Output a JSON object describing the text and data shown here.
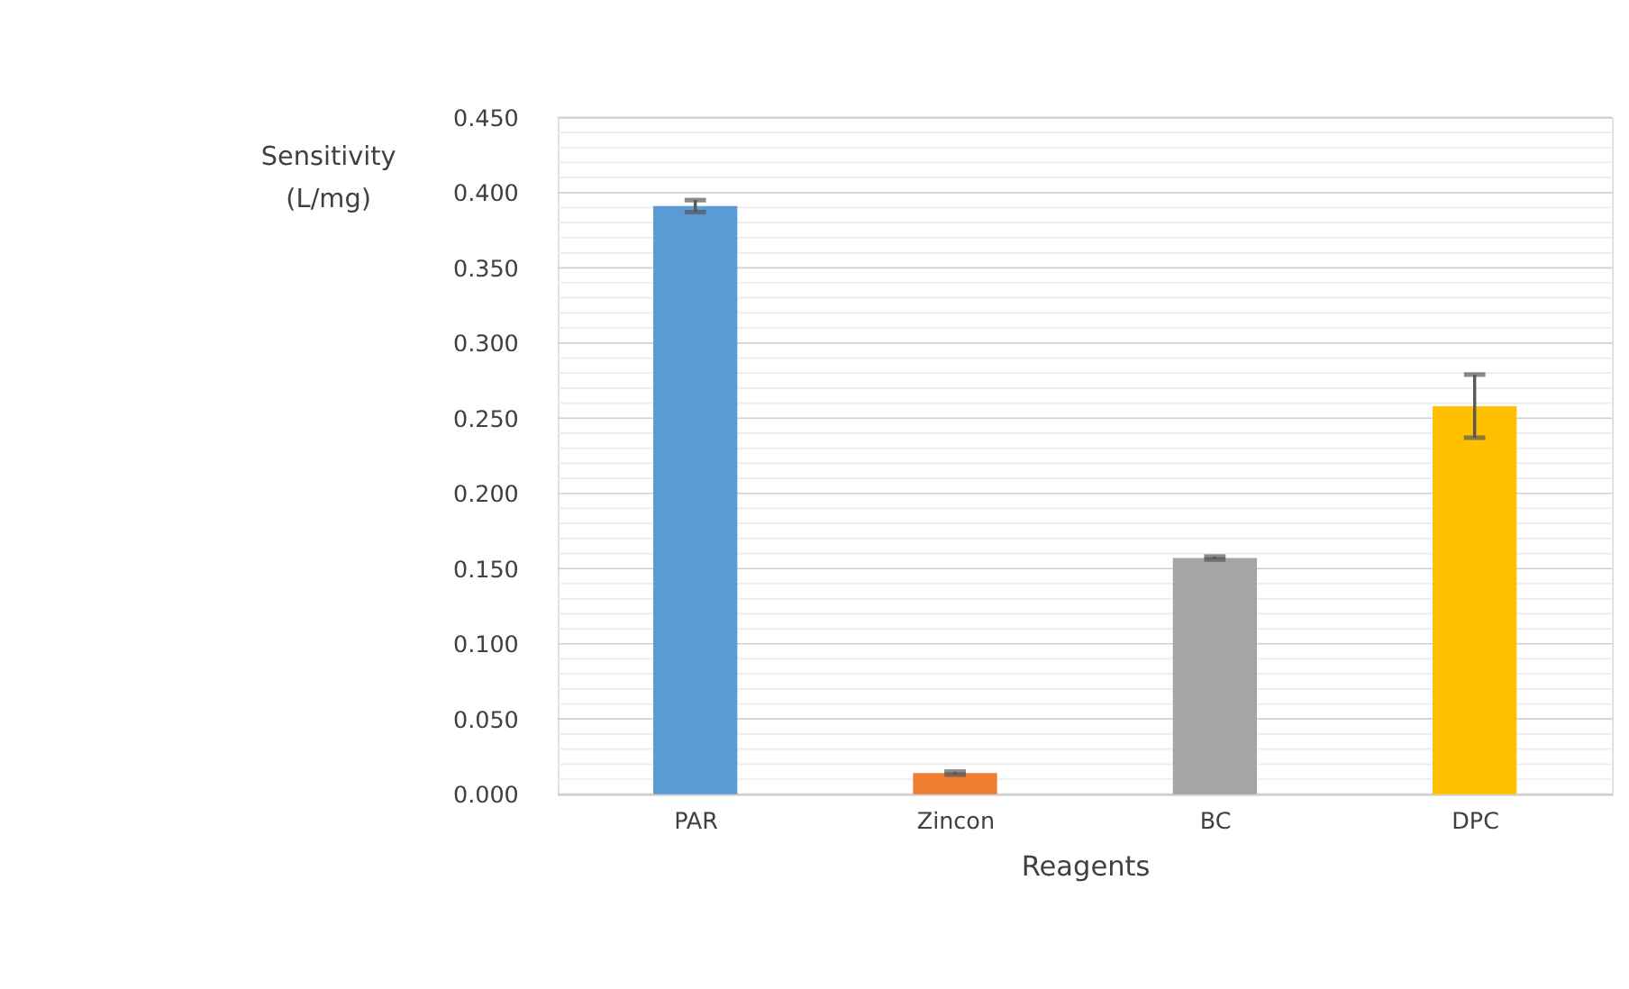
{
  "chart_data": {
    "type": "bar",
    "xlabel": "Reagents",
    "ylabel": "Sensitivity (L/mg)",
    "categories": [
      "PAR",
      "Zincon",
      "BC",
      "DPC"
    ],
    "values": [
      0.391,
      0.014,
      0.157,
      0.258
    ],
    "colors": [
      "#5b9bd5",
      "#ed7d31",
      "#a5a5a5",
      "#ffc000"
    ],
    "errors": [
      0.004,
      0.001,
      0.001,
      0.021
    ],
    "ylim": [
      0,
      0.45
    ],
    "yticks": [
      {
        "value": 0,
        "label": "0.000"
      },
      {
        "value": 0.01,
        "label": null
      },
      {
        "value": 0.02,
        "label": null
      },
      {
        "value": 0.03,
        "label": null
      },
      {
        "value": 0.04,
        "label": null
      },
      {
        "value": 0.05,
        "label": "0.050"
      },
      {
        "value": 0.06,
        "label": null
      },
      {
        "value": 0.07,
        "label": null
      },
      {
        "value": 0.08,
        "label": null
      },
      {
        "value": 0.09,
        "label": null
      },
      {
        "value": 0.1,
        "label": "0.100"
      },
      {
        "value": 0.11,
        "label": null
      },
      {
        "value": 0.12,
        "label": null
      },
      {
        "value": 0.13,
        "label": null
      },
      {
        "value": 0.14,
        "label": null
      },
      {
        "value": 0.15,
        "label": "0.150"
      },
      {
        "value": 0.16,
        "label": null
      },
      {
        "value": 0.17,
        "label": null
      },
      {
        "value": 0.18,
        "label": null
      },
      {
        "value": 0.19,
        "label": null
      },
      {
        "value": 0.2,
        "label": "0.200"
      },
      {
        "value": 0.21,
        "label": null
      },
      {
        "value": 0.22,
        "label": null
      },
      {
        "value": 0.23,
        "label": null
      },
      {
        "value": 0.24,
        "label": null
      },
      {
        "value": 0.25,
        "label": "0.250"
      },
      {
        "value": 0.26,
        "label": null
      },
      {
        "value": 0.27,
        "label": null
      },
      {
        "value": 0.28,
        "label": null
      },
      {
        "value": 0.29,
        "label": null
      },
      {
        "value": 0.3,
        "label": "0.300"
      },
      {
        "value": 0.31,
        "label": null
      },
      {
        "value": 0.32,
        "label": null
      },
      {
        "value": 0.33,
        "label": null
      },
      {
        "value": 0.34,
        "label": null
      },
      {
        "value": 0.35,
        "label": "0.350"
      },
      {
        "value": 0.36,
        "label": null
      },
      {
        "value": 0.37,
        "label": null
      },
      {
        "value": 0.38,
        "label": null
      },
      {
        "value": 0.39,
        "label": null
      },
      {
        "value": 0.4,
        "label": "0.400"
      },
      {
        "value": 0.41,
        "label": null
      },
      {
        "value": 0.42,
        "label": null
      },
      {
        "value": 0.43,
        "label": null
      },
      {
        "value": 0.44,
        "label": null
      },
      {
        "value": 0.45,
        "label": "0.450"
      }
    ],
    "grid": "y"
  }
}
